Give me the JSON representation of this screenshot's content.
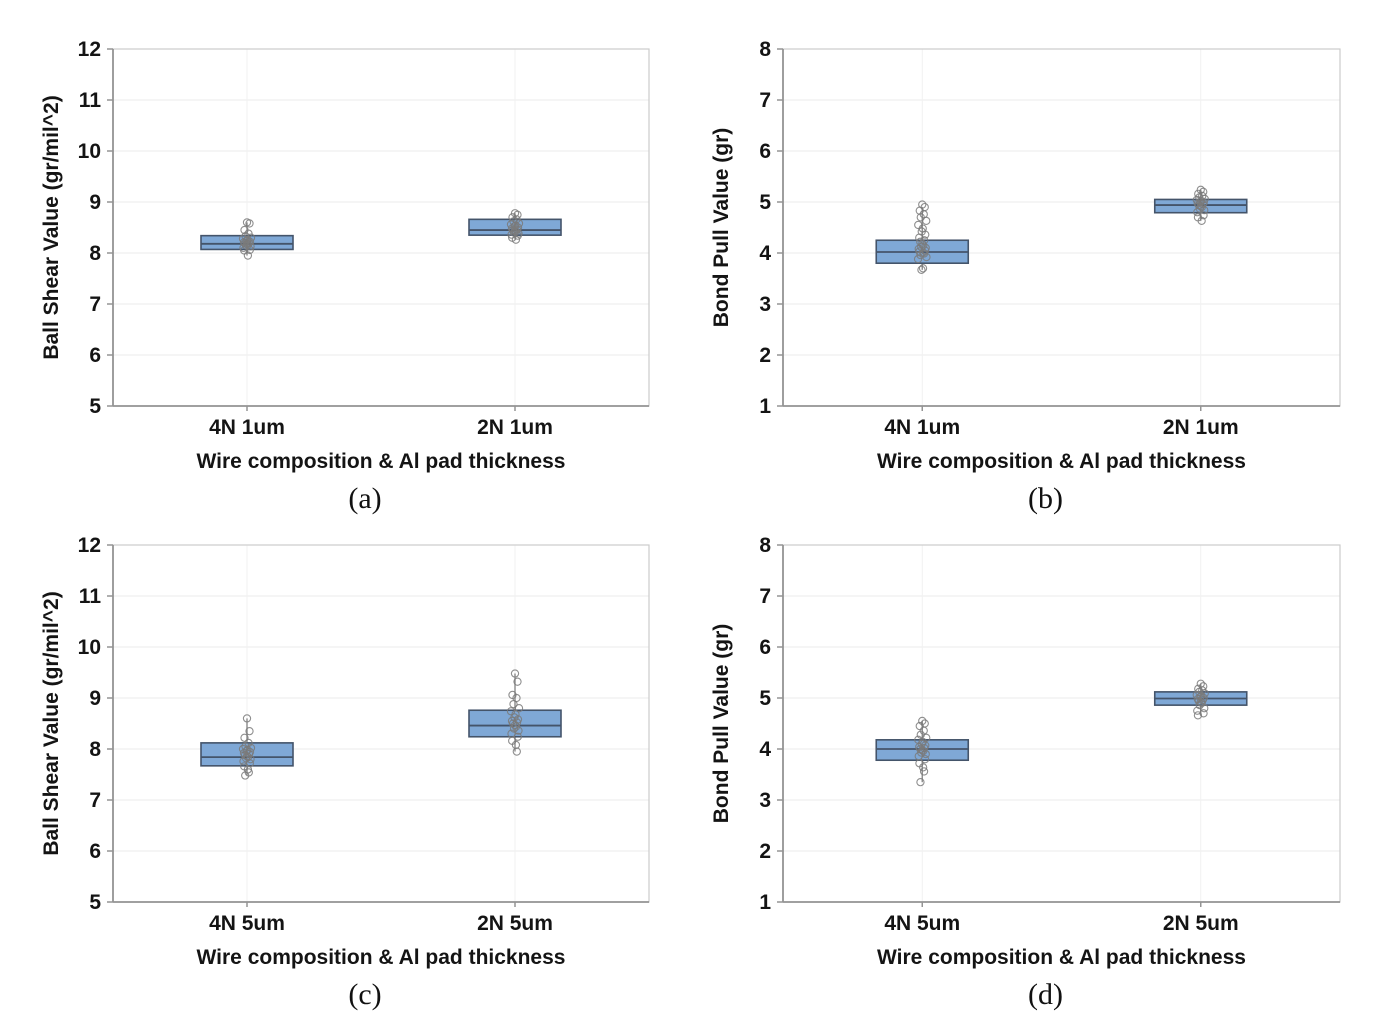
{
  "figure": {
    "background_color": "#ffffff",
    "panel_captions": [
      "(a)",
      "(b)",
      "(c)",
      "(d)"
    ]
  },
  "style": {
    "box_fill": "#7FA8D6",
    "box_stroke": "#44546A",
    "median_color": "#44546A",
    "whisker_color": "#8a8a8a",
    "point_stroke": "#7a7a7a",
    "grid_color": "#ebebeb",
    "category_grid_color": "#f1f1f1",
    "frame_color": "#cccccc",
    "axis_color": "#949494",
    "text_color": "#141414"
  },
  "chart_data": [
    {
      "id": "a",
      "type": "box",
      "caption": "(a)",
      "xlabel": "Wire composition & Al pad thickness",
      "ylabel": "Ball Shear Value (gr/mil^2)",
      "ylim": [
        5,
        12
      ],
      "yticks": [
        5,
        6,
        7,
        8,
        9,
        10,
        11,
        12
      ],
      "grid": true,
      "legend": "none",
      "categories": [
        "4N 1um",
        "2N 1um"
      ],
      "series": [
        {
          "category": "4N 1um",
          "q1": 8.07,
          "median": 8.18,
          "q3": 8.34,
          "whisker_low": 7.95,
          "whisker_high": 8.6,
          "points": [
            8.6,
            8.58,
            8.45,
            8.38,
            8.33,
            8.3,
            8.28,
            8.26,
            8.24,
            8.22,
            8.21,
            8.2,
            8.19,
            8.18,
            8.16,
            8.15,
            8.13,
            8.1,
            8.06,
            8.05,
            7.95
          ]
        },
        {
          "category": "2N 1um",
          "q1": 8.35,
          "median": 8.45,
          "q3": 8.66,
          "whisker_low": 8.26,
          "whisker_high": 8.78,
          "points": [
            8.78,
            8.75,
            8.7,
            8.66,
            8.62,
            8.58,
            8.56,
            8.54,
            8.52,
            8.5,
            8.48,
            8.46,
            8.45,
            8.44,
            8.42,
            8.4,
            8.38,
            8.36,
            8.34,
            8.3,
            8.26
          ]
        }
      ]
    },
    {
      "id": "b",
      "type": "box",
      "caption": "(b)",
      "xlabel": "Wire composition & Al pad thickness",
      "ylabel": "Bond Pull Value (gr)",
      "ylim": [
        1,
        8
      ],
      "yticks": [
        1,
        2,
        3,
        4,
        5,
        6,
        7,
        8
      ],
      "grid": true,
      "legend": "none",
      "categories": [
        "4N 1um",
        "2N 1um"
      ],
      "series": [
        {
          "category": "4N 1um",
          "q1": 3.8,
          "median": 4.02,
          "q3": 4.25,
          "whisker_low": 3.67,
          "whisker_high": 4.9,
          "points": [
            4.95,
            4.9,
            4.83,
            4.76,
            4.7,
            4.63,
            4.55,
            4.48,
            4.42,
            4.36,
            4.3,
            4.25,
            4.22,
            4.18,
            4.15,
            4.12,
            4.1,
            4.08,
            4.05,
            4.03,
            4.01,
            3.99,
            3.96,
            3.92,
            3.88,
            3.7,
            3.67
          ]
        },
        {
          "category": "2N 1um",
          "q1": 4.79,
          "median": 4.94,
          "q3": 5.05,
          "whisker_low": 4.63,
          "whisker_high": 5.24,
          "points": [
            5.24,
            5.2,
            5.16,
            5.12,
            5.09,
            5.06,
            5.04,
            5.02,
            5.0,
            4.99,
            4.97,
            4.96,
            4.94,
            4.92,
            4.9,
            4.87,
            4.84,
            4.8,
            4.74,
            4.7,
            4.63
          ]
        }
      ]
    },
    {
      "id": "c",
      "type": "box",
      "caption": "(c)",
      "xlabel": "Wire composition & Al pad thickness",
      "ylabel": "Ball Shear Value (gr/mil^2)",
      "ylim": [
        5,
        12
      ],
      "yticks": [
        5,
        6,
        7,
        8,
        9,
        10,
        11,
        12
      ],
      "grid": true,
      "legend": "none",
      "categories": [
        "4N 5um",
        "2N 5um"
      ],
      "series": [
        {
          "category": "4N 5um",
          "q1": 7.67,
          "median": 7.84,
          "q3": 8.12,
          "whisker_low": 7.48,
          "whisker_high": 8.6,
          "points": [
            8.6,
            8.35,
            8.22,
            8.12,
            8.05,
            8.02,
            8.0,
            7.98,
            7.96,
            7.94,
            7.92,
            7.9,
            7.88,
            7.86,
            7.84,
            7.82,
            7.8,
            7.76,
            7.72,
            7.66,
            7.6,
            7.54,
            7.48
          ]
        },
        {
          "category": "2N 5um",
          "q1": 8.24,
          "median": 8.46,
          "q3": 8.76,
          "whisker_low": 7.95,
          "whisker_high": 9.48,
          "points": [
            9.48,
            9.32,
            9.06,
            9.0,
            8.88,
            8.8,
            8.74,
            8.68,
            8.62,
            8.58,
            8.55,
            8.52,
            8.5,
            8.47,
            8.44,
            8.4,
            8.36,
            8.3,
            8.24,
            8.16,
            8.08,
            7.95
          ]
        }
      ]
    },
    {
      "id": "d",
      "type": "box",
      "caption": "(d)",
      "xlabel": "Wire composition & Al pad thickness",
      "ylabel": "Bond Pull Value (gr)",
      "ylim": [
        1,
        8
      ],
      "yticks": [
        1,
        2,
        3,
        4,
        5,
        6,
        7,
        8
      ],
      "grid": true,
      "legend": "none",
      "categories": [
        "4N 5um",
        "2N 5um"
      ],
      "series": [
        {
          "category": "4N 5um",
          "q1": 3.78,
          "median": 4.0,
          "q3": 4.18,
          "whisker_low": 3.35,
          "whisker_high": 4.55,
          "points": [
            4.55,
            4.5,
            4.45,
            4.36,
            4.28,
            4.22,
            4.18,
            4.14,
            4.1,
            4.07,
            4.04,
            4.02,
            4.0,
            3.98,
            3.96,
            3.93,
            3.9,
            3.86,
            3.8,
            3.72,
            3.64,
            3.56,
            3.35
          ]
        },
        {
          "category": "2N 5um",
          "q1": 4.86,
          "median": 4.99,
          "q3": 5.12,
          "whisker_low": 4.66,
          "whisker_high": 5.28,
          "points": [
            5.28,
            5.23,
            5.18,
            5.15,
            5.12,
            5.09,
            5.06,
            5.04,
            5.02,
            5.0,
            4.98,
            4.96,
            4.94,
            4.92,
            4.9,
            4.86,
            4.8,
            4.75,
            4.7,
            4.66
          ]
        }
      ]
    }
  ]
}
